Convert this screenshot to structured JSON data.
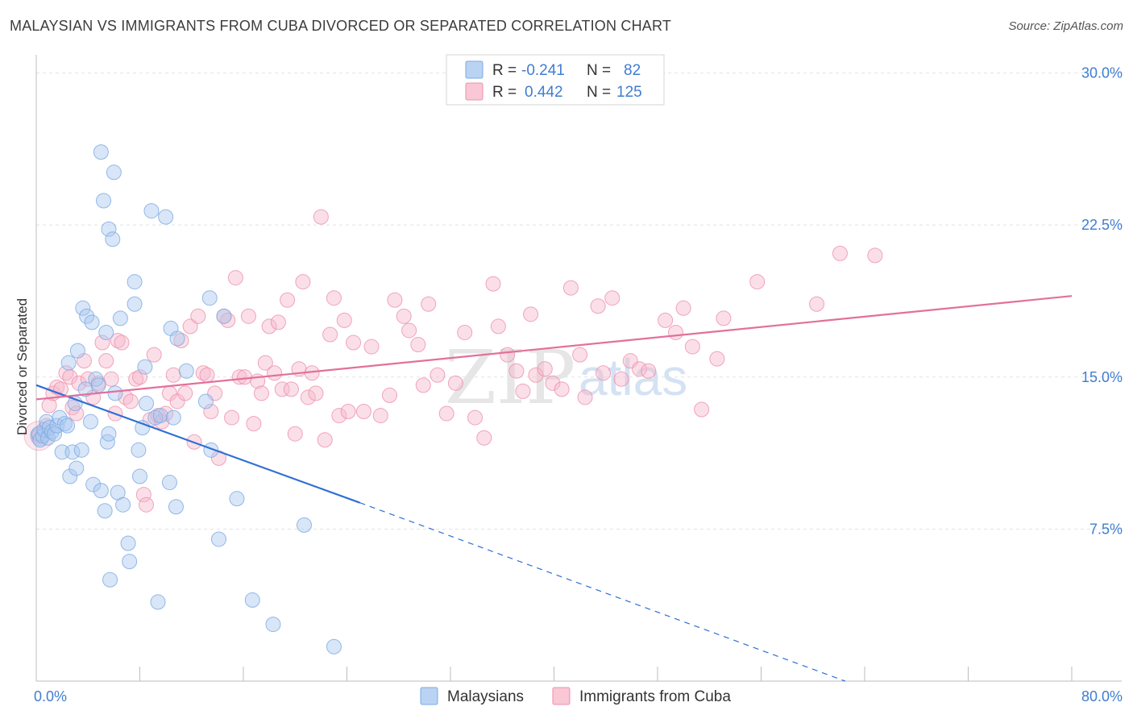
{
  "title": "MALAYSIAN VS IMMIGRANTS FROM CUBA DIVORCED OR SEPARATED CORRELATION CHART",
  "source": "Source: ZipAtlas.com",
  "watermark": {
    "zip": "ZIP",
    "atlas": "atlas"
  },
  "legend": {
    "r_label": "R =",
    "n_label": "N =",
    "rows": [
      {
        "r": "-0.241",
        "n": "82",
        "color": "#a9c8f0"
      },
      {
        "r": "0.442",
        "n": "125",
        "color": "#f7b9cc"
      }
    ]
  },
  "chart_data": {
    "type": "scatter",
    "title": "MALAYSIAN VS IMMIGRANTS FROM CUBA DIVORCED OR SEPARATED CORRELATION CHART",
    "xlabel": "",
    "ylabel": "Divorced or Separated",
    "xlim": [
      0,
      80
    ],
    "ylim": [
      0,
      30.5
    ],
    "x_tick_labels": [
      "0.0%",
      "80.0%"
    ],
    "y_ticks": [
      7.5,
      15.0,
      22.5,
      30.0
    ],
    "y_tick_labels": [
      "7.5%",
      "15.0%",
      "22.5%",
      "30.0%"
    ],
    "grid": true,
    "legend_position": "top-center",
    "series": [
      {
        "name": "Malaysians",
        "color": "#a9c8f0",
        "stroke": "#7aa9e4",
        "trend_color": "#2f6fd4",
        "trend": {
          "x0": 0,
          "y0": 14.6,
          "x1": 25,
          "y1": 8.8,
          "dash_to_x": 62.5,
          "dash_to_y": 0
        },
        "points": [
          [
            0.2,
            12.2
          ],
          [
            0.3,
            11.9
          ],
          [
            0.5,
            12.1
          ],
          [
            0.6,
            12.4
          ],
          [
            0.8,
            12.8
          ],
          [
            0.9,
            12.0
          ],
          [
            1.0,
            12.5
          ],
          [
            1.2,
            12.3
          ],
          [
            1.4,
            12.2
          ],
          [
            1.6,
            12.6
          ],
          [
            1.8,
            13.0
          ],
          [
            2.0,
            11.3
          ],
          [
            2.2,
            12.7
          ],
          [
            2.4,
            12.6
          ],
          [
            2.5,
            15.7
          ],
          [
            2.6,
            10.1
          ],
          [
            2.8,
            11.3
          ],
          [
            3.0,
            13.7
          ],
          [
            3.1,
            10.5
          ],
          [
            3.2,
            16.3
          ],
          [
            3.5,
            11.4
          ],
          [
            3.6,
            18.4
          ],
          [
            3.8,
            14.4
          ],
          [
            3.9,
            18.0
          ],
          [
            4.2,
            12.8
          ],
          [
            4.3,
            17.7
          ],
          [
            4.4,
            9.7
          ],
          [
            4.6,
            14.9
          ],
          [
            4.8,
            14.6
          ],
          [
            5.0,
            9.4
          ],
          [
            5.0,
            26.1
          ],
          [
            5.2,
            23.7
          ],
          [
            5.3,
            8.4
          ],
          [
            5.4,
            17.2
          ],
          [
            5.5,
            11.8
          ],
          [
            5.6,
            12.2
          ],
          [
            5.7,
            5.0
          ],
          [
            5.6,
            22.3
          ],
          [
            5.9,
            21.8
          ],
          [
            6.0,
            25.1
          ],
          [
            6.1,
            14.2
          ],
          [
            6.3,
            9.3
          ],
          [
            6.5,
            17.9
          ],
          [
            6.7,
            8.7
          ],
          [
            7.1,
            6.8
          ],
          [
            7.2,
            5.9
          ],
          [
            7.6,
            19.7
          ],
          [
            7.6,
            18.6
          ],
          [
            7.9,
            11.4
          ],
          [
            8.0,
            10.1
          ],
          [
            8.2,
            12.5
          ],
          [
            8.4,
            15.5
          ],
          [
            8.5,
            13.7
          ],
          [
            8.9,
            23.2
          ],
          [
            9.2,
            13.0
          ],
          [
            9.4,
            3.9
          ],
          [
            9.6,
            13.1
          ],
          [
            10.0,
            22.9
          ],
          [
            10.3,
            9.8
          ],
          [
            10.4,
            17.4
          ],
          [
            10.6,
            13.0
          ],
          [
            10.8,
            8.6
          ],
          [
            10.9,
            16.9
          ],
          [
            11.6,
            15.3
          ],
          [
            13.1,
            13.8
          ],
          [
            13.4,
            18.9
          ],
          [
            13.5,
            11.4
          ],
          [
            14.1,
            7.0
          ],
          [
            14.5,
            18.0
          ],
          [
            15.5,
            9.0
          ],
          [
            16.7,
            4.0
          ],
          [
            18.3,
            2.8
          ],
          [
            20.7,
            7.7
          ],
          [
            23.0,
            1.7
          ]
        ]
      },
      {
        "name": "Immigrants from Cuba",
        "color": "#f7b9cc",
        "stroke": "#ec90ab",
        "trend_color": "#e2709b",
        "trend": {
          "x0": 0,
          "y0": 13.9,
          "x1": 80,
          "y1": 19.0
        },
        "points": [
          [
            0.2,
            12.1
          ],
          [
            0.8,
            12.6
          ],
          [
            1.0,
            13.6
          ],
          [
            1.3,
            14.2
          ],
          [
            1.6,
            14.5
          ],
          [
            1.9,
            14.4
          ],
          [
            2.3,
            15.2
          ],
          [
            2.6,
            15.0
          ],
          [
            2.8,
            13.5
          ],
          [
            3.1,
            13.2
          ],
          [
            3.3,
            14.7
          ],
          [
            3.7,
            15.8
          ],
          [
            4.0,
            14.9
          ],
          [
            4.4,
            14.0
          ],
          [
            4.8,
            14.7
          ],
          [
            5.1,
            16.7
          ],
          [
            5.4,
            15.8
          ],
          [
            5.8,
            14.9
          ],
          [
            6.1,
            13.2
          ],
          [
            6.3,
            16.8
          ],
          [
            6.6,
            16.7
          ],
          [
            6.9,
            14.0
          ],
          [
            7.3,
            13.8
          ],
          [
            7.7,
            14.9
          ],
          [
            8.0,
            15.0
          ],
          [
            8.3,
            9.2
          ],
          [
            8.5,
            8.7
          ],
          [
            8.8,
            12.9
          ],
          [
            9.1,
            16.1
          ],
          [
            9.4,
            13.1
          ],
          [
            9.7,
            12.8
          ],
          [
            10.0,
            13.2
          ],
          [
            10.3,
            14.2
          ],
          [
            10.6,
            15.1
          ],
          [
            10.9,
            13.8
          ],
          [
            11.2,
            16.8
          ],
          [
            11.5,
            14.2
          ],
          [
            11.9,
            17.5
          ],
          [
            12.2,
            11.8
          ],
          [
            12.5,
            18.0
          ],
          [
            12.9,
            15.2
          ],
          [
            13.2,
            15.1
          ],
          [
            13.5,
            13.3
          ],
          [
            13.8,
            14.2
          ],
          [
            14.1,
            11.0
          ],
          [
            14.5,
            18.0
          ],
          [
            14.8,
            17.8
          ],
          [
            15.1,
            13.0
          ],
          [
            15.4,
            19.9
          ],
          [
            15.7,
            15.0
          ],
          [
            16.1,
            15.0
          ],
          [
            16.4,
            18.0
          ],
          [
            16.8,
            12.7
          ],
          [
            17.1,
            14.8
          ],
          [
            17.4,
            14.2
          ],
          [
            17.7,
            15.7
          ],
          [
            18.0,
            17.5
          ],
          [
            18.4,
            15.2
          ],
          [
            18.7,
            17.7
          ],
          [
            19.0,
            14.4
          ],
          [
            19.4,
            18.8
          ],
          [
            19.7,
            14.4
          ],
          [
            20.0,
            12.2
          ],
          [
            20.3,
            15.4
          ],
          [
            20.6,
            19.7
          ],
          [
            21.0,
            14.0
          ],
          [
            21.3,
            15.2
          ],
          [
            21.6,
            14.2
          ],
          [
            22.0,
            22.9
          ],
          [
            22.3,
            11.9
          ],
          [
            22.7,
            17.1
          ],
          [
            23.0,
            18.9
          ],
          [
            23.4,
            13.1
          ],
          [
            23.8,
            17.8
          ],
          [
            24.1,
            13.3
          ],
          [
            24.5,
            16.7
          ],
          [
            25.3,
            13.3
          ],
          [
            25.9,
            16.5
          ],
          [
            26.6,
            13.1
          ],
          [
            27.3,
            14.1
          ],
          [
            27.7,
            18.8
          ],
          [
            28.4,
            18.0
          ],
          [
            28.8,
            17.3
          ],
          [
            29.5,
            16.6
          ],
          [
            29.9,
            14.6
          ],
          [
            30.3,
            18.6
          ],
          [
            31.0,
            15.1
          ],
          [
            31.7,
            13.2
          ],
          [
            32.4,
            14.7
          ],
          [
            33.1,
            17.2
          ],
          [
            33.9,
            13.0
          ],
          [
            34.6,
            12.0
          ],
          [
            35.3,
            19.6
          ],
          [
            35.7,
            17.5
          ],
          [
            36.4,
            16.1
          ],
          [
            37.1,
            15.3
          ],
          [
            37.6,
            14.3
          ],
          [
            38.2,
            18.1
          ],
          [
            38.6,
            15.1
          ],
          [
            39.3,
            15.4
          ],
          [
            39.9,
            14.7
          ],
          [
            40.6,
            14.4
          ],
          [
            41.3,
            19.4
          ],
          [
            42.0,
            16.1
          ],
          [
            42.4,
            14.0
          ],
          [
            43.4,
            18.5
          ],
          [
            43.8,
            15.2
          ],
          [
            44.5,
            18.9
          ],
          [
            45.2,
            14.9
          ],
          [
            45.9,
            15.8
          ],
          [
            46.6,
            15.4
          ],
          [
            47.3,
            15.3
          ],
          [
            48.6,
            17.8
          ],
          [
            49.4,
            17.2
          ],
          [
            50.0,
            18.4
          ],
          [
            50.7,
            16.5
          ],
          [
            51.4,
            13.4
          ],
          [
            52.6,
            15.9
          ],
          [
            53.1,
            17.9
          ],
          [
            55.7,
            19.7
          ],
          [
            60.3,
            18.6
          ],
          [
            62.1,
            21.1
          ],
          [
            64.8,
            21.0
          ]
        ]
      }
    ]
  },
  "bottom_legend": [
    {
      "label": "Malaysians",
      "color": "#a9c8f0",
      "stroke": "#7aa9e4"
    },
    {
      "label": "Immigrants from Cuba",
      "color": "#f7b9cc",
      "stroke": "#ec90ab"
    }
  ]
}
